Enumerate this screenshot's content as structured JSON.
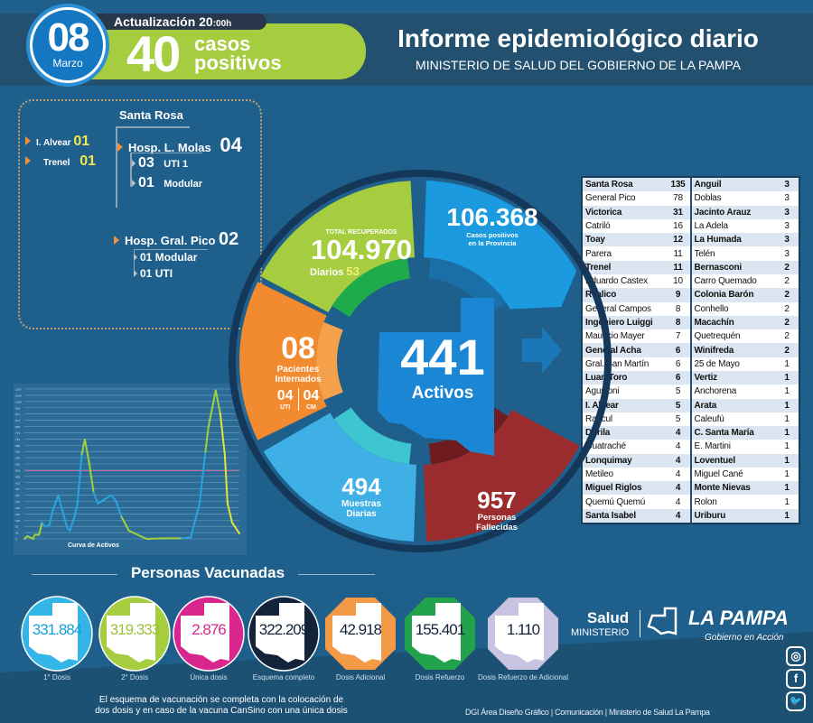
{
  "header": {
    "day": "08",
    "month": "Marzo",
    "update_label": "Actualización 20",
    "update_time_suffix": ":00h",
    "daily_cases": "40",
    "daily_cases_label_1": "casos",
    "daily_cases_label_2": "positivos",
    "title": "Informe epidemiológico diario",
    "subtitle": "MINISTERIO DE SALUD DEL GOBIERNO DE LA PAMPA"
  },
  "hospitals": {
    "city": "Santa Rosa",
    "others": [
      {
        "name": "I. Alvear",
        "count": "01"
      },
      {
        "name": "Trenel",
        "count": "01"
      }
    ],
    "molas": {
      "name": "Hosp. L. Molas",
      "count": "04",
      "sub": [
        {
          "count": "03",
          "label": "UTI 1"
        },
        {
          "count": "01",
          "label": "Modular"
        }
      ]
    },
    "pico": {
      "name": "Hosp. Gral. Pico",
      "count": "02",
      "sub": [
        {
          "count": "01",
          "label": "Modular"
        },
        {
          "count": "01",
          "label": "UTI"
        }
      ]
    }
  },
  "wheel": {
    "recovered_label": "TOTAL RECUPERADOS",
    "recovered": "104.970",
    "daily_recovered_label": "Diarios",
    "daily_recovered": "53",
    "positives": "106.368",
    "positives_label_1": "Casos positivos",
    "positives_label_2": "en la Provincia",
    "hospitalized": "08",
    "hospitalized_label_1": "Pacientes",
    "hospitalized_label_2": "Internados",
    "uti": "04",
    "uti_label": "UTI",
    "cm": "04",
    "cm_label": "CM",
    "active": "441",
    "active_label": "Activos",
    "samples": "494",
    "samples_label_1": "Muestras",
    "samples_label_2": "Diarias",
    "deaths": "957",
    "deaths_label_1": "Personas",
    "deaths_label_2": "Fallecidas",
    "colors": {
      "recovered": "#a6cc3f",
      "positives": "#1b9ae0",
      "hospitalized": "#f28a30",
      "samples": "#3fb0e6",
      "deaths": "#9b2c2e",
      "active": "#1a86d4"
    }
  },
  "localities": {
    "left": [
      {
        "name": "Santa Rosa",
        "value": "135"
      },
      {
        "name": "General Pico",
        "value": "78"
      },
      {
        "name": "Victorica",
        "value": "31"
      },
      {
        "name": "Catriló",
        "value": "16"
      },
      {
        "name": "Toay",
        "value": "12"
      },
      {
        "name": "Parera",
        "value": "11"
      },
      {
        "name": "Trenel",
        "value": "11"
      },
      {
        "name": "Eduardo Castex",
        "value": "10"
      },
      {
        "name": "Realico",
        "value": "9"
      },
      {
        "name": "General Campos",
        "value": "8"
      },
      {
        "name": "Ingeniero Luiggi",
        "value": "8"
      },
      {
        "name": "Mauricio Mayer",
        "value": "7"
      },
      {
        "name": "General Acha",
        "value": "6"
      },
      {
        "name": "Gral. San Martín",
        "value": "6"
      },
      {
        "name": "Luan Toro",
        "value": "6"
      },
      {
        "name": "Agustoni",
        "value": "5"
      },
      {
        "name": "I. Alvear",
        "value": "5"
      },
      {
        "name": "Rancul",
        "value": "5"
      },
      {
        "name": "Dorila",
        "value": "4"
      },
      {
        "name": "Guatraché",
        "value": "4"
      },
      {
        "name": "Lonquimay",
        "value": "4"
      },
      {
        "name": "Metileo",
        "value": "4"
      },
      {
        "name": "Miguel Riglos",
        "value": "4"
      },
      {
        "name": "Quemú Quemú",
        "value": "4"
      },
      {
        "name": "Santa Isabel",
        "value": "4"
      }
    ],
    "right": [
      {
        "name": "Anguil",
        "value": "3"
      },
      {
        "name": "Doblas",
        "value": "3"
      },
      {
        "name": "Jacinto Arauz",
        "value": "3"
      },
      {
        "name": "La Adela",
        "value": "3"
      },
      {
        "name": "La Humada",
        "value": "3"
      },
      {
        "name": "Telén",
        "value": "3"
      },
      {
        "name": "Bernasconi",
        "value": "2"
      },
      {
        "name": "Carro Quemado",
        "value": "2"
      },
      {
        "name": "Colonia Barón",
        "value": "2"
      },
      {
        "name": "Conhello",
        "value": "2"
      },
      {
        "name": "Macachín",
        "value": "2"
      },
      {
        "name": "Quetrequén",
        "value": "2"
      },
      {
        "name": "Winifreda",
        "value": "2"
      },
      {
        "name": "25 de Mayo",
        "value": "1"
      },
      {
        "name": "Vertiz",
        "value": "1"
      },
      {
        "name": "Anchorena",
        "value": "1"
      },
      {
        "name": "Arata",
        "value": "1"
      },
      {
        "name": "Caleufú",
        "value": "1"
      },
      {
        "name": "C. Santa María",
        "value": "1"
      },
      {
        "name": "E. Martini",
        "value": "1"
      },
      {
        "name": "Loventuel",
        "value": "1"
      },
      {
        "name": "Miguel Cané",
        "value": "1"
      },
      {
        "name": "Monte Nievas",
        "value": "1"
      },
      {
        "name": "Rolon",
        "value": "1"
      },
      {
        "name": "Uriburu",
        "value": "1"
      }
    ]
  },
  "chart_data": {
    "type": "line",
    "title": "Curva de Activos",
    "xlabel": "",
    "ylabel": "",
    "ylim": [
      0,
      1100
    ],
    "grid": true,
    "x": [
      0,
      1.4,
      4.1,
      4.8,
      6.8,
      8.2,
      9.6,
      11.6,
      13,
      15.8,
      17.8,
      19.9,
      21.2,
      23.3,
      24.7,
      26.7,
      28.1,
      30.1,
      32.2,
      34.2,
      36.3,
      40.4,
      42.5,
      45.2,
      47.3,
      48.6,
      52.7,
      56.8,
      65.1,
      73.3,
      77.4,
      81.5,
      84.2,
      85.6,
      89,
      91.1,
      93.2,
      94.5,
      96.6,
      100
    ],
    "values": [
      0,
      20,
      0,
      30,
      30,
      120,
      90,
      100,
      200,
      320,
      200,
      80,
      60,
      160,
      260,
      620,
      730,
      560,
      340,
      260,
      280,
      320,
      280,
      160,
      100,
      60,
      30,
      0,
      4,
      4,
      10,
      260,
      640,
      820,
      1090,
      920,
      620,
      260,
      120,
      40
    ]
  },
  "vaccination": {
    "title": "Personas Vacunadas",
    "items": [
      {
        "value": "331.884",
        "label": "1° Dosis",
        "color": "#34b5e8",
        "text_color": "#1a9fd8"
      },
      {
        "value": "319.333",
        "label": "2° Dosis",
        "color": "#a6cc3f",
        "text_color": "#9cc23a"
      },
      {
        "value": "2.876",
        "label": "Única dosis",
        "color": "#d8268e",
        "text_color": "#d8268e"
      },
      {
        "value": "322.209",
        "label": "Esquema completo",
        "color": "#13233a",
        "text_color": "#13233a"
      },
      {
        "value": "42.918",
        "label": "Dosis Adicional",
        "color": "#f29a45",
        "text_color": "#13233a"
      },
      {
        "value": "155.401",
        "label": "Dosis Refuerzo",
        "color": "#22a34b",
        "text_color": "#13233a"
      },
      {
        "value": "1.110",
        "label": "Dosis Refuerzo de Adicional",
        "color": "#c8c3e0",
        "text_color": "#13233a"
      }
    ],
    "note_1": "El esquema de vacunación se completa con la colocación de",
    "note_2": "dos dosis y en caso de la vacuna CanSino con una única dosis"
  },
  "footer": {
    "salud": "Salud",
    "ministerio": "MINISTERIO",
    "la_pampa": "LA PAMPA",
    "gobierno": "Gobierno en Acción",
    "credits": "DGI Área Diseño Gráfico  | Comunicación | Ministerio de Salud La Pampa",
    "social": [
      "instagram-icon",
      "facebook-icon",
      "twitter-icon"
    ]
  }
}
